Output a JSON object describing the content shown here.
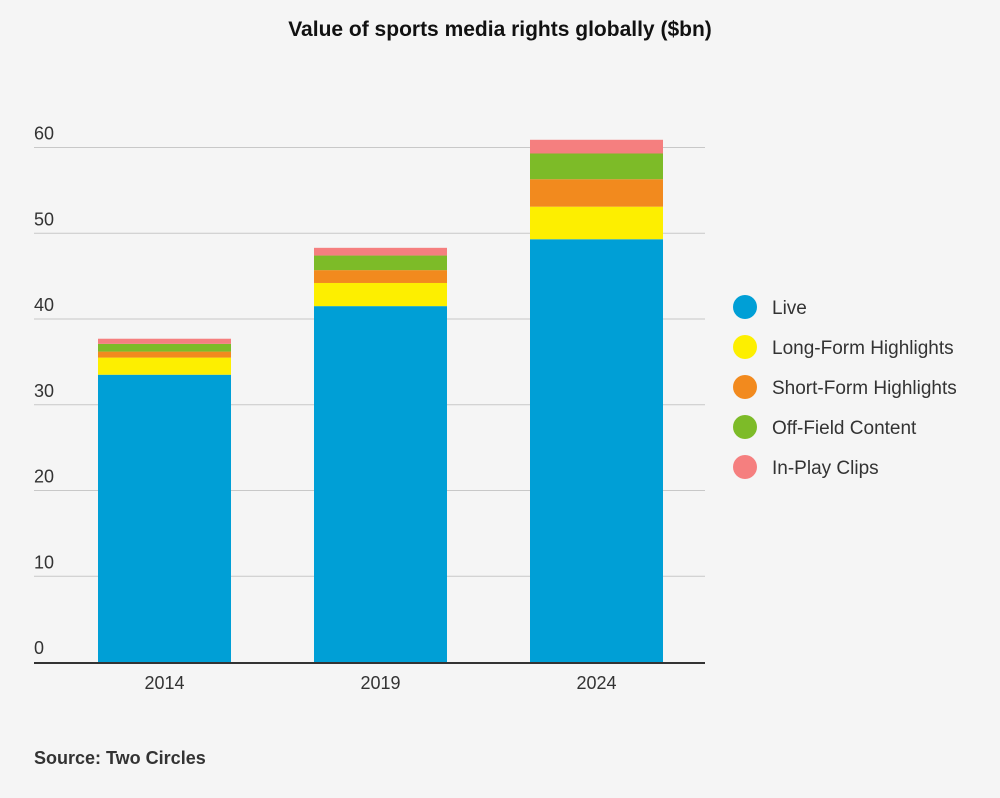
{
  "chart_data": {
    "type": "bar",
    "stacked": true,
    "title": "Value of sports media rights globally ($bn)",
    "categories": [
      "2014",
      "2019",
      "2024"
    ],
    "series": [
      {
        "name": "Live",
        "color": "#009fd6",
        "values": [
          33.5,
          41.5,
          49.3
        ]
      },
      {
        "name": "Long-Form Highlights",
        "color": "#fdef00",
        "values": [
          2.0,
          2.7,
          3.8
        ]
      },
      {
        "name": "Short-Form Highlights",
        "color": "#f28a1e",
        "values": [
          0.7,
          1.5,
          3.2
        ]
      },
      {
        "name": "Off-Field Content",
        "color": "#7dbb28",
        "values": [
          0.9,
          1.7,
          3.0
        ]
      },
      {
        "name": "In-Play Clips",
        "color": "#f57f7f",
        "values": [
          0.6,
          0.9,
          1.6
        ]
      }
    ],
    "yticks": [
      "0",
      "10",
      "20",
      "30",
      "40",
      "50",
      "60"
    ],
    "ylim": [
      0,
      60
    ],
    "grid": true,
    "legend": "right",
    "source": "Source: Two Circles"
  }
}
